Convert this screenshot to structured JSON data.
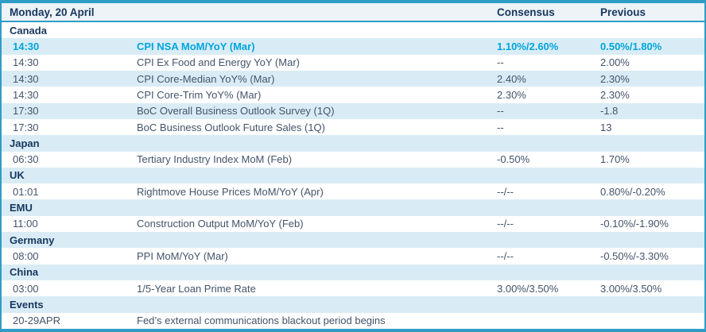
{
  "table": {
    "title": "Monday, 20 April",
    "column_headers": {
      "consensus": "Consensus",
      "previous": "Previous"
    },
    "rows": [
      {
        "type": "section",
        "label": "Canada"
      },
      {
        "type": "event",
        "time": "14:30",
        "event": "CPI NSA MoM/YoY (Mar)",
        "consensus": "1.10%/2.60%",
        "previous": "0.50%/1.80%",
        "highlight": true
      },
      {
        "type": "event",
        "time": "14:30",
        "event": "CPI Ex Food and Energy YoY (Mar)",
        "consensus": "--",
        "previous": "2.00%",
        "highlight": false
      },
      {
        "type": "event",
        "time": "14:30",
        "event": "CPI Core-Median YoY% (Mar)",
        "consensus": "2.40%",
        "previous": "2.30%",
        "highlight": false
      },
      {
        "type": "event",
        "time": "14:30",
        "event": "CPI Core-Trim YoY% (Mar)",
        "consensus": "2.30%",
        "previous": "2.30%",
        "highlight": false
      },
      {
        "type": "event",
        "time": "17:30",
        "event": "BoC Overall Business Outlook Survey (1Q)",
        "consensus": "--",
        "previous": "-1.8",
        "highlight": false
      },
      {
        "type": "event",
        "time": "17:30",
        "event": "BoC Business Outlook Future Sales (1Q)",
        "consensus": "--",
        "previous": "13",
        "highlight": false
      },
      {
        "type": "section",
        "label": "Japan"
      },
      {
        "type": "event",
        "time": "06:30",
        "event": "Tertiary Industry Index MoM (Feb)",
        "consensus": "-0.50%",
        "previous": "1.70%",
        "highlight": false
      },
      {
        "type": "section",
        "label": "UK"
      },
      {
        "type": "event",
        "time": "01:01",
        "event": "Rightmove House Prices MoM/YoY (Apr)",
        "consensus": "--/--",
        "previous": "0.80%/-0.20%",
        "highlight": false
      },
      {
        "type": "section",
        "label": "EMU"
      },
      {
        "type": "event",
        "time": "11:00",
        "event": "Construction Output MoM/YoY (Feb)",
        "consensus": "--/--",
        "previous": "-0.10%/-1.90%",
        "highlight": false
      },
      {
        "type": "section",
        "label": "Germany"
      },
      {
        "type": "event",
        "time": "08:00",
        "event": "PPI MoM/YoY (Mar)",
        "consensus": "--/--",
        "previous": "-0.50%/-3.30%",
        "highlight": false
      },
      {
        "type": "section",
        "label": "China"
      },
      {
        "type": "event",
        "time": "03:00",
        "event": "1/5-Year Loan Prime Rate",
        "consensus": "3.00%/3.50%",
        "previous": "3.00%/3.50%",
        "highlight": false
      },
      {
        "type": "section",
        "label": "Events"
      },
      {
        "type": "event",
        "time": "20-29APR",
        "event": "Fed’s external communications blackout period begins",
        "consensus": "",
        "previous": "",
        "highlight": false
      }
    ]
  },
  "colors": {
    "border_teal": "#2e9dc6",
    "border_teal_dark": "#1d6e8e",
    "zebra_blue": "#d9ecf6",
    "header_bg": "#edf3f7",
    "text_navy": "#17375e",
    "text_body": "#44546a",
    "highlight_cyan": "#00a5dc"
  }
}
